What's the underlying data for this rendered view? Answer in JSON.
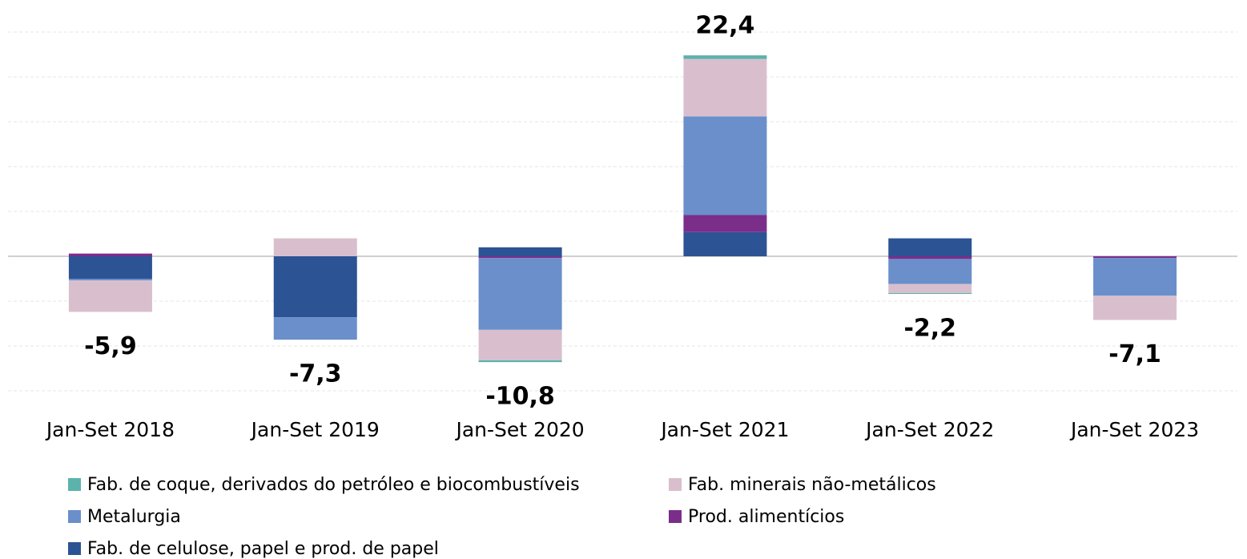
{
  "chart_data": {
    "type": "stacked_bar",
    "categories": [
      "Jan-Set 2018",
      "Jan-Set 2019",
      "Jan-Set 2020",
      "Jan-Set 2021",
      "Jan-Set 2022",
      "Jan-Set 2023"
    ],
    "series": [
      {
        "name": "Fab. de coque, derivados do petróleo e biocombustíveis",
        "color": "#5bb3ac",
        "values": [
          0,
          0,
          -0.2,
          0.4,
          -0.1,
          0
        ]
      },
      {
        "name": "Fab. minerais não-metálicos",
        "color": "#d9bfcd",
        "values": [
          -3.5,
          2.0,
          -3.4,
          6.4,
          -1.0,
          -2.7
        ]
      },
      {
        "name": "Metalurgia",
        "color": "#6a8fcb",
        "values": [
          -0.2,
          -2.5,
          -8.0,
          11.0,
          -2.8,
          -4.2
        ]
      },
      {
        "name": "Prod. alimentícios",
        "color": "#7b2d8a",
        "values": [
          0.3,
          0,
          -0.2,
          1.9,
          -0.3,
          -0.2
        ]
      },
      {
        "name": "Fab. de celulose, papel e prod. de papel",
        "color": "#2c5393",
        "values": [
          -2.5,
          -6.8,
          1.0,
          2.7,
          2.0,
          0
        ]
      }
    ],
    "stack_order": [
      4,
      3,
      2,
      1,
      0
    ],
    "totals": [
      -5.9,
      -7.3,
      -10.8,
      22.4,
      -2.2,
      -7.1
    ],
    "value_labels": [
      "-5,9",
      "-7,3",
      "-10,8",
      "22,4",
      "-2,2",
      "-7,1"
    ],
    "label_color": "#1aa3e8",
    "ylim": [
      -15,
      25
    ],
    "yticks": [
      -15,
      -10,
      -5,
      0,
      5,
      10,
      15,
      20,
      25
    ],
    "grid": true
  }
}
